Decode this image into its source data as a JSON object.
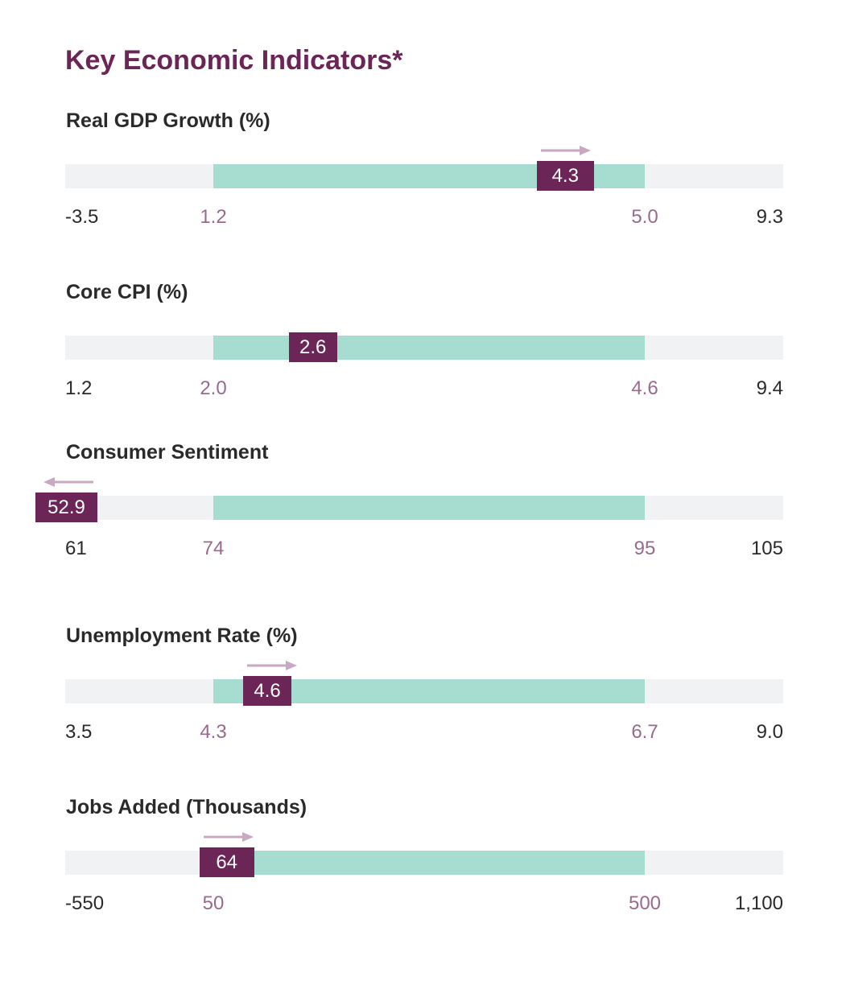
{
  "page": {
    "title": "Key Economic Indicators*"
  },
  "colors": {
    "title": "#6b2557",
    "track": "#f1f2f4",
    "band": "#a6ddd0",
    "marker": "#6b2557",
    "band_tick": "#9a6a8e",
    "arrow": "#c9a8c1"
  },
  "chart_data": [
    {
      "type": "bar",
      "title": "Real GDP Growth (%)",
      "axis_min": -3.5,
      "axis_max": 9.3,
      "axis_min_label": "-3.5",
      "axis_max_label": "9.3",
      "band_low": 1.2,
      "band_high": 5.0,
      "band_low_label": "1.2",
      "band_high_label": "5.0",
      "value": 4.3,
      "value_label": "4.3",
      "trend": "up"
    },
    {
      "type": "bar",
      "title": "Core CPI (%)",
      "axis_min": 1.2,
      "axis_max": 9.4,
      "axis_min_label": "1.2",
      "axis_max_label": "9.4",
      "band_low": 2.0,
      "band_high": 4.6,
      "band_low_label": "2.0",
      "band_high_label": "4.6",
      "value": 2.6,
      "value_label": "2.6",
      "trend": "none"
    },
    {
      "type": "bar",
      "title": "Consumer Sentiment",
      "axis_min": 61,
      "axis_max": 105,
      "axis_min_label": "61",
      "axis_max_label": "105",
      "band_low": 74,
      "band_high": 95,
      "band_low_label": "74",
      "band_high_label": "95",
      "value": 52.9,
      "value_label": "52.9",
      "trend": "down"
    },
    {
      "type": "bar",
      "title": "Unemployment Rate (%)",
      "axis_min": 3.5,
      "axis_max": 9.0,
      "axis_min_label": "3.5",
      "axis_max_label": "9.0",
      "band_low": 4.3,
      "band_high": 6.7,
      "band_low_label": "4.3",
      "band_high_label": "6.7",
      "value": 4.6,
      "value_label": "4.6",
      "trend": "up"
    },
    {
      "type": "bar",
      "title": "Jobs Added (Thousands)",
      "axis_min": -550,
      "axis_max": 1100,
      "axis_min_label": "-550",
      "axis_max_label": "1,100",
      "band_low": 50,
      "band_high": 500,
      "band_low_label": "50",
      "band_high_label": "500",
      "value": 64,
      "value_label": "64",
      "trend": "up"
    }
  ]
}
